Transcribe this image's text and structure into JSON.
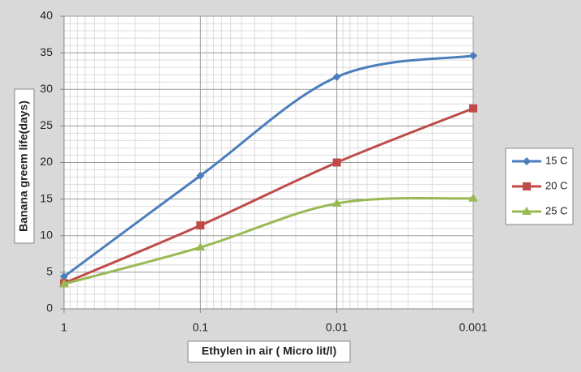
{
  "chart_data": {
    "type": "line",
    "xlabel": "Ethylen in air ( Micro lit/l)",
    "ylabel": "Banana greem life(days)",
    "x": [
      1,
      0.1,
      0.01,
      0.001
    ],
    "x_log": true,
    "xlim": [
      1,
      0.001
    ],
    "xticks": [
      1,
      0.1,
      0.01,
      0.001
    ],
    "ylim": [
      0,
      40
    ],
    "yticks": [
      0,
      5,
      10,
      15,
      20,
      25,
      30,
      35,
      40
    ],
    "grid": true,
    "smooth": true,
    "legend": "right",
    "series": [
      {
        "name": "15 C",
        "color": "#4a7ebb",
        "marker": "diamond",
        "values": [
          4.4,
          18.2,
          31.7,
          34.6
        ]
      },
      {
        "name": "20 C",
        "color": "#be4b48",
        "marker": "square",
        "values": [
          3.5,
          11.4,
          20.0,
          27.4
        ]
      },
      {
        "name": "25 C",
        "color": "#98b954",
        "marker": "triangle",
        "values": [
          3.4,
          8.4,
          14.4,
          15.1
        ]
      }
    ]
  }
}
